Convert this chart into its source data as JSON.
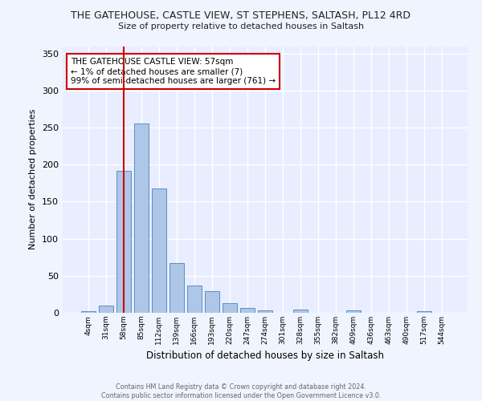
{
  "title": "THE GATEHOUSE, CASTLE VIEW, ST STEPHENS, SALTASH, PL12 4RD",
  "subtitle": "Size of property relative to detached houses in Saltash",
  "xlabel": "Distribution of detached houses by size in Saltash",
  "ylabel": "Number of detached properties",
  "bar_labels": [
    "4sqm",
    "31sqm",
    "58sqm",
    "85sqm",
    "112sqm",
    "139sqm",
    "166sqm",
    "193sqm",
    "220sqm",
    "247sqm",
    "274sqm",
    "301sqm",
    "328sqm",
    "355sqm",
    "382sqm",
    "409sqm",
    "436sqm",
    "463sqm",
    "490sqm",
    "517sqm",
    "544sqm"
  ],
  "bar_values": [
    2,
    10,
    192,
    255,
    168,
    67,
    37,
    29,
    13,
    6,
    3,
    0,
    4,
    0,
    0,
    3,
    0,
    0,
    0,
    2,
    0
  ],
  "bar_color": "#aec6e8",
  "bar_edge_color": "#5b8ec4",
  "background_color": "#e8eeff",
  "fig_background_color": "#f0f4ff",
  "grid_color": "#ffffff",
  "marker_value": "58sqm",
  "marker_line_color": "#cc0000",
  "annotation_text": "THE GATEHOUSE CASTLE VIEW: 57sqm\n← 1% of detached houses are smaller (7)\n99% of semi-detached houses are larger (761) →",
  "footer_text": "Contains HM Land Registry data © Crown copyright and database right 2024.\nContains public sector information licensed under the Open Government Licence v3.0.",
  "ylim": [
    0,
    360
  ],
  "yticks": [
    0,
    50,
    100,
    150,
    200,
    250,
    300,
    350
  ]
}
